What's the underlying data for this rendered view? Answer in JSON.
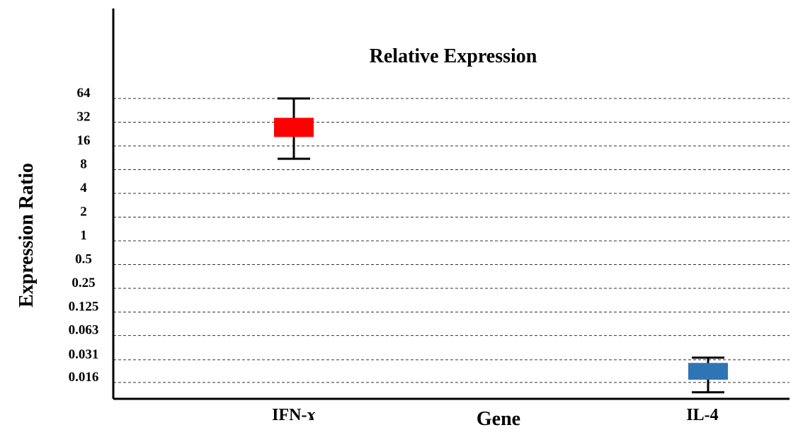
{
  "chart_data": {
    "type": "box",
    "title": "Relative Expression",
    "xlabel": "Gene",
    "ylabel": "Expression  Ratio",
    "y_scale": "log2",
    "y_ticks": [
      64,
      32,
      16,
      8,
      4,
      2,
      1,
      0.5,
      0.25,
      0.125,
      0.063,
      0.031,
      0.016
    ],
    "y_tick_labels": [
      "64",
      "32",
      "16",
      "8",
      "4",
      "2",
      "1",
      "0.5",
      "0.25",
      "0.125",
      "0.063",
      "0.031",
      "0.016"
    ],
    "grid": "horizontal dashed",
    "categories": [
      "IFN-ɤ",
      "IL-4"
    ],
    "boxes": [
      {
        "category": "IFN-ɤ",
        "min": 11,
        "q1": 21,
        "median": 28,
        "q3": 36,
        "max": 64,
        "color": "#ff0000"
      },
      {
        "category": "IL-4",
        "min": 0.012,
        "q1": 0.0175,
        "median": 0.022,
        "q3": 0.028,
        "max": 0.033,
        "color": "#2e75b6"
      }
    ]
  }
}
